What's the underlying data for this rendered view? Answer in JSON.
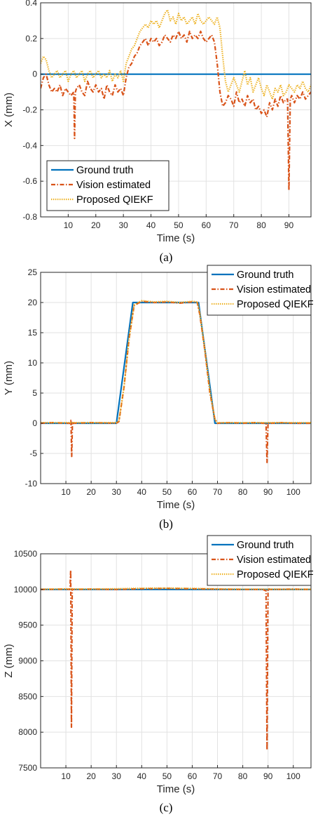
{
  "colors": {
    "ground_truth": "#0072BD",
    "vision": "#D95319",
    "qiekf": "#EDB120",
    "grid": "#e2e2e2",
    "axis": "#262626"
  },
  "chart_data": [
    {
      "type": "line",
      "caption": "(a)",
      "xlabel": "Time (s)",
      "ylabel": "X (mm)",
      "xlim": [
        0,
        98
      ],
      "ylim": [
        -0.8,
        0.4
      ],
      "xticks": [
        10,
        20,
        30,
        40,
        50,
        60,
        70,
        80,
        90
      ],
      "yticks": [
        -0.8,
        -0.6,
        -0.4,
        -0.2,
        0,
        0.2,
        0.4
      ],
      "ytick_labels": [
        "-0.8",
        "-0.6",
        "-0.4",
        "-0.2",
        "0",
        "0.2",
        "0.4"
      ],
      "grid": true,
      "legend_position": "bottom-left",
      "series": [
        {
          "name": "Ground truth",
          "style": "solid",
          "x": [
            0,
            98
          ],
          "y": [
            0,
            0
          ]
        },
        {
          "name": "Vision estimated",
          "style": "dashdot",
          "x": [
            0,
            1,
            2,
            3,
            4,
            5,
            6,
            7,
            8,
            9,
            10,
            11,
            12,
            12.3,
            12.6,
            13,
            14,
            15,
            16,
            17,
            18,
            19,
            20,
            21,
            22,
            23,
            24,
            25,
            26,
            27,
            28,
            29,
            30,
            31,
            32,
            33,
            34,
            35,
            36,
            37,
            38,
            39,
            40,
            41,
            42,
            43,
            44,
            45,
            46,
            47,
            48,
            49,
            50,
            51,
            52,
            53,
            54,
            55,
            56,
            57,
            58,
            59,
            60,
            61,
            62,
            63,
            64,
            65,
            66,
            67,
            68,
            69,
            70,
            71,
            72,
            73,
            74,
            75,
            76,
            77,
            78,
            79,
            80,
            81,
            82,
            83,
            84,
            85,
            86,
            87,
            88,
            89,
            89.5,
            90,
            90.5,
            91,
            92,
            93,
            94,
            95,
            96,
            97,
            98
          ],
          "y": [
            -0.08,
            -0.02,
            0.0,
            -0.06,
            -0.1,
            -0.08,
            -0.1,
            -0.06,
            -0.12,
            -0.08,
            -0.1,
            -0.12,
            -0.1,
            -0.36,
            -0.1,
            -0.08,
            -0.06,
            -0.1,
            -0.12,
            -0.04,
            -0.08,
            -0.1,
            -0.06,
            -0.1,
            -0.08,
            -0.14,
            -0.06,
            -0.1,
            -0.12,
            -0.06,
            -0.1,
            -0.08,
            -0.12,
            -0.02,
            0.04,
            0.06,
            0.1,
            0.12,
            0.16,
            0.18,
            0.2,
            0.16,
            0.2,
            0.18,
            0.2,
            0.16,
            0.18,
            0.22,
            0.2,
            0.18,
            0.22,
            0.2,
            0.24,
            0.2,
            0.22,
            0.18,
            0.24,
            0.2,
            0.22,
            0.2,
            0.24,
            0.2,
            0.18,
            0.2,
            0.22,
            0.18,
            0.06,
            -0.1,
            -0.18,
            -0.16,
            -0.12,
            -0.14,
            -0.18,
            -0.1,
            -0.16,
            -0.14,
            -0.18,
            -0.12,
            -0.16,
            -0.14,
            -0.2,
            -0.18,
            -0.22,
            -0.2,
            -0.24,
            -0.16,
            -0.2,
            -0.14,
            -0.18,
            -0.12,
            -0.16,
            -0.14,
            -0.14,
            -0.65,
            -0.14,
            -0.12,
            -0.16,
            -0.12,
            -0.14,
            -0.1,
            -0.14,
            -0.12,
            -0.1
          ]
        },
        {
          "name": "Proposed QIEKF",
          "style": "dotted",
          "x": [
            0,
            1,
            2,
            3,
            4,
            5,
            6,
            7,
            8,
            9,
            10,
            11,
            12,
            13,
            14,
            15,
            16,
            17,
            18,
            19,
            20,
            21,
            22,
            23,
            24,
            25,
            26,
            27,
            28,
            29,
            30,
            31,
            32,
            33,
            34,
            35,
            36,
            37,
            38,
            39,
            40,
            41,
            42,
            43,
            44,
            45,
            46,
            47,
            48,
            49,
            50,
            51,
            52,
            53,
            54,
            55,
            56,
            57,
            58,
            59,
            60,
            61,
            62,
            63,
            64,
            65,
            66,
            67,
            68,
            69,
            70,
            71,
            72,
            73,
            74,
            75,
            76,
            77,
            78,
            79,
            80,
            81,
            82,
            83,
            84,
            85,
            86,
            87,
            88,
            89,
            90,
            91,
            92,
            93,
            94,
            95,
            96,
            97,
            98
          ],
          "y": [
            0.06,
            0.1,
            0.08,
            0.02,
            -0.02,
            0.0,
            0.02,
            -0.02,
            0.0,
            0.02,
            -0.04,
            0.0,
            0.02,
            -0.02,
            0.0,
            0.02,
            -0.04,
            0.0,
            0.02,
            -0.02,
            0.0,
            0.02,
            -0.02,
            0.0,
            -0.02,
            0.02,
            -0.04,
            0.0,
            -0.02,
            0.02,
            -0.04,
            0.06,
            0.1,
            0.14,
            0.16,
            0.2,
            0.24,
            0.26,
            0.28,
            0.26,
            0.3,
            0.28,
            0.3,
            0.26,
            0.3,
            0.34,
            0.36,
            0.3,
            0.32,
            0.28,
            0.34,
            0.3,
            0.32,
            0.28,
            0.3,
            0.32,
            0.28,
            0.34,
            0.3,
            0.28,
            0.3,
            0.32,
            0.3,
            0.28,
            0.32,
            0.26,
            0.1,
            -0.04,
            -0.1,
            -0.06,
            -0.02,
            -0.06,
            -0.1,
            -0.04,
            0.02,
            -0.06,
            -0.02,
            -0.1,
            -0.06,
            -0.02,
            -0.08,
            -0.12,
            -0.06,
            -0.1,
            -0.14,
            -0.08,
            -0.1,
            -0.06,
            -0.12,
            -0.1,
            -0.06,
            -0.08,
            -0.1,
            -0.06,
            -0.08,
            -0.04,
            -0.08,
            -0.1,
            -0.06
          ]
        }
      ]
    },
    {
      "type": "line",
      "caption": "(b)",
      "xlabel": "Time (s)",
      "ylabel": "Y (mm)",
      "xlim": [
        0,
        107
      ],
      "ylim": [
        -10,
        25
      ],
      "xticks": [
        10,
        20,
        30,
        40,
        50,
        60,
        70,
        80,
        90,
        100
      ],
      "yticks": [
        -10,
        -5,
        0,
        5,
        10,
        15,
        20,
        25
      ],
      "ytick_labels": [
        "-10",
        "-5",
        "0",
        "5",
        "10",
        "15",
        "20",
        "25"
      ],
      "grid": true,
      "legend_position": "top-right",
      "series": [
        {
          "name": "Ground truth",
          "style": "solid",
          "x": [
            0,
            30,
            36.5,
            62.5,
            69,
            107
          ],
          "y": [
            0,
            0,
            20,
            20,
            0,
            0
          ]
        },
        {
          "name": "Vision estimated",
          "style": "dashdot",
          "x": [
            0,
            5,
            10,
            11.8,
            12,
            12.3,
            12.6,
            13,
            20,
            30,
            31,
            33,
            35,
            37,
            40,
            45,
            50,
            55,
            60,
            62,
            63,
            65,
            67,
            69,
            70,
            75,
            80,
            85,
            88,
            89.2,
            89.6,
            90,
            90.4,
            91,
            95,
            100,
            107
          ],
          "y": [
            0,
            0.1,
            0,
            0,
            0.6,
            -5.5,
            0.2,
            0,
            0.1,
            0,
            0.3,
            6,
            14,
            19.5,
            20.2,
            20,
            20.1,
            19.9,
            20.1,
            20,
            18,
            12,
            5,
            0.6,
            0,
            0.1,
            0,
            0.1,
            0,
            0,
            -6.5,
            0.1,
            0,
            0,
            0.1,
            0,
            0
          ]
        },
        {
          "name": "Proposed QIEKF",
          "style": "dotted",
          "x": [
            0,
            10,
            20,
            30,
            31,
            33,
            35,
            37,
            40,
            45,
            50,
            55,
            60,
            62,
            63,
            65,
            67,
            69,
            70,
            80,
            90,
            100,
            107
          ],
          "y": [
            0.1,
            0.1,
            0.1,
            0.1,
            0.4,
            6,
            14,
            19.6,
            20.3,
            20.1,
            20.2,
            20,
            20.2,
            20.1,
            18.2,
            12.2,
            5.2,
            0.7,
            0.1,
            0.1,
            0.1,
            0.1,
            0.1
          ]
        }
      ]
    },
    {
      "type": "line",
      "caption": "(c)",
      "xlabel": "Time (s)",
      "ylabel": "Z (mm)",
      "xlim": [
        0,
        107
      ],
      "ylim": [
        7500,
        10500
      ],
      "xticks": [
        10,
        20,
        30,
        40,
        50,
        60,
        70,
        80,
        90,
        100
      ],
      "yticks": [
        7500,
        8000,
        8500,
        9000,
        9500,
        10000,
        10500
      ],
      "ytick_labels": [
        "7500",
        "8000",
        "8500",
        "9000",
        "9500",
        "10000",
        "10500"
      ],
      "grid": true,
      "legend_position": "top-right",
      "series": [
        {
          "name": "Ground truth",
          "style": "solid",
          "x": [
            0,
            107
          ],
          "y": [
            10000,
            10000
          ]
        },
        {
          "name": "Vision estimated",
          "style": "dashdot",
          "x": [
            0,
            10,
            11.6,
            11.9,
            12.2,
            12.5,
            13,
            20,
            30,
            40,
            50,
            60,
            70,
            80,
            88,
            89.2,
            89.6,
            90,
            91,
            100,
            107
          ],
          "y": [
            10000,
            10005,
            10000,
            10270,
            8070,
            10010,
            10000,
            10005,
            10000,
            10010,
            10015,
            10010,
            10005,
            10000,
            10000,
            9980,
            7750,
            10010,
            10000,
            10005,
            10000
          ]
        },
        {
          "name": "Proposed QIEKF",
          "style": "dotted",
          "x": [
            0,
            10,
            20,
            30,
            40,
            50,
            60,
            70,
            80,
            90,
            100,
            107
          ],
          "y": [
            10005,
            10008,
            10006,
            10010,
            10018,
            10020,
            10015,
            10008,
            10005,
            10005,
            10003,
            10003
          ]
        }
      ]
    }
  ]
}
